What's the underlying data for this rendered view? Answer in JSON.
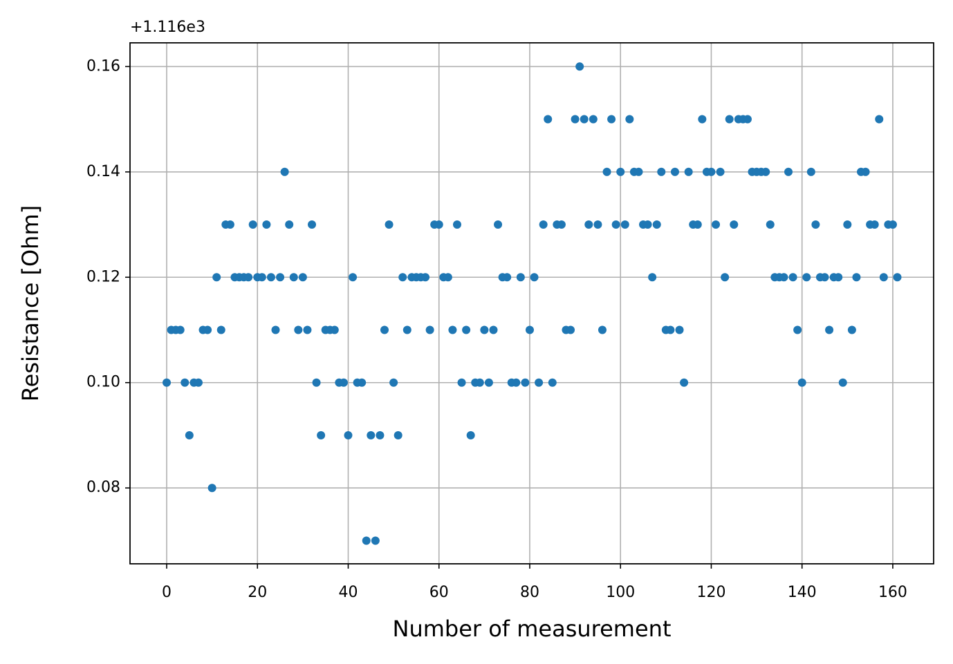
{
  "chart_data": {
    "type": "scatter",
    "x_label": "Number of measurement",
    "y_label": "Resistance [Ohm]",
    "y_offset_label": "+1.116e3",
    "color": "#1f77b4",
    "grid": true,
    "xlim": [
      -8.08,
      169.0
    ],
    "ylim": [
      0.0656,
      0.1645
    ],
    "xticks": [
      0,
      20,
      40,
      60,
      80,
      100,
      120,
      140,
      160
    ],
    "yticks": [
      0.08,
      {
        "value": 0.1,
        "label": "0.10"
      },
      0.12,
      0.14,
      0.16
    ],
    "x": [
      0,
      1,
      2,
      3,
      4,
      5,
      6,
      7,
      8,
      9,
      10,
      11,
      12,
      13,
      14,
      15,
      16,
      17,
      18,
      19,
      20,
      21,
      22,
      23,
      24,
      25,
      26,
      27,
      28,
      29,
      30,
      31,
      32,
      33,
      34,
      35,
      36,
      37,
      38,
      39,
      40,
      41,
      42,
      43,
      44,
      45,
      46,
      47,
      48,
      49,
      50,
      51,
      52,
      53,
      54,
      55,
      56,
      57,
      58,
      59,
      60,
      61,
      62,
      63,
      64,
      65,
      66,
      67,
      68,
      69,
      70,
      71,
      72,
      73,
      74,
      75,
      76,
      77,
      78,
      79,
      80,
      81,
      82,
      83,
      84,
      85,
      86,
      87,
      88,
      89,
      90,
      91,
      92,
      93,
      94,
      95,
      96,
      97,
      98,
      99,
      100,
      101,
      102,
      103,
      104,
      105,
      106,
      107,
      108,
      109,
      110,
      111,
      112,
      113,
      114,
      115,
      116,
      117,
      118,
      119,
      120,
      121,
      122,
      123,
      124,
      125,
      126,
      127,
      128,
      129,
      130,
      131,
      132,
      133,
      134,
      135,
      136,
      137,
      138,
      139,
      140,
      141,
      142,
      143,
      144,
      145,
      146,
      147,
      148,
      149,
      150,
      151,
      152,
      153,
      154,
      155,
      156,
      157,
      158,
      159,
      160,
      161
    ],
    "values": [
      0.1,
      0.11,
      0.11,
      0.11,
      0.1,
      0.09,
      0.1,
      0.1,
      0.11,
      0.11,
      0.08,
      0.12,
      0.11,
      0.13,
      0.13,
      0.12,
      0.12,
      0.12,
      0.12,
      0.13,
      0.12,
      0.12,
      0.13,
      0.12,
      0.11,
      0.12,
      0.14,
      0.13,
      0.12,
      0.11,
      0.12,
      0.11,
      0.13,
      0.1,
      0.09,
      0.11,
      0.11,
      0.11,
      0.1,
      0.1,
      0.09,
      0.12,
      0.1,
      0.1,
      0.07,
      0.09,
      0.07,
      0.09,
      0.11,
      0.13,
      0.1,
      0.09,
      0.12,
      0.11,
      0.12,
      0.12,
      0.12,
      0.12,
      0.11,
      0.13,
      0.13,
      0.12,
      0.12,
      0.11,
      0.13,
      0.1,
      0.11,
      0.09,
      0.1,
      0.1,
      0.11,
      0.1,
      0.11,
      0.13,
      0.12,
      0.12,
      0.1,
      0.1,
      0.12,
      0.1,
      0.11,
      0.12,
      0.1,
      0.13,
      0.15,
      0.1,
      0.13,
      0.13,
      0.11,
      0.11,
      0.15,
      0.16,
      0.15,
      0.13,
      0.15,
      0.13,
      0.11,
      0.14,
      0.15,
      0.13,
      0.14,
      0.13,
      0.15,
      0.14,
      0.14,
      0.13,
      0.13,
      0.12,
      0.13,
      0.14,
      0.11,
      0.11,
      0.14,
      0.11,
      0.1,
      0.14,
      0.13,
      0.13,
      0.15,
      0.14,
      0.14,
      0.13,
      0.14,
      0.12,
      0.15,
      0.13,
      0.15,
      0.15,
      0.15,
      0.14,
      0.14,
      0.14,
      0.14,
      0.13,
      0.12,
      0.12,
      0.12,
      0.14,
      0.12,
      0.11,
      0.1,
      0.12,
      0.14,
      0.13,
      0.12,
      0.12,
      0.11,
      0.12,
      0.12,
      0.1,
      0.13,
      0.11,
      0.12,
      0.14,
      0.14,
      0.13,
      0.13,
      0.15,
      0.12,
      0.13,
      0.13,
      0.12
    ]
  }
}
